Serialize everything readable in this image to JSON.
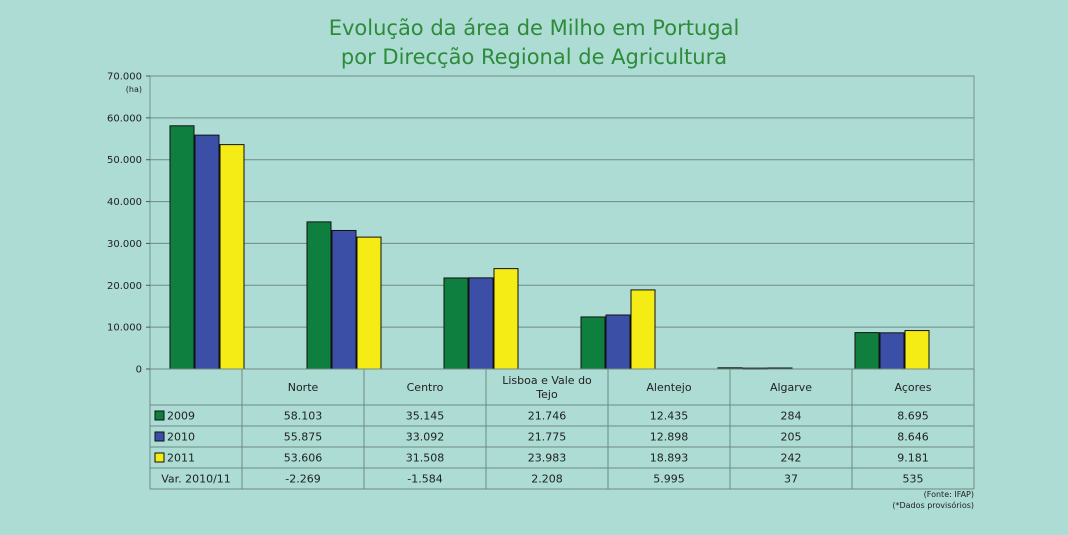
{
  "chart_data": {
    "type": "bar",
    "title_line1": "Evolução da área de Milho em Portugal",
    "title_line2": "por Direcção Regional de Agricultura",
    "unit_label": "(ha)",
    "ylim": [
      0,
      70000
    ],
    "yticks": [
      "0",
      "10.000",
      "20.000",
      "30.000",
      "40.000",
      "50.000",
      "60.000",
      "70.000"
    ],
    "grid": true,
    "categories": [
      "Norte",
      "Centro",
      "Lisboa e Vale do Tejo",
      "Alentejo",
      "Algarve",
      "Açores"
    ],
    "category_lines": [
      [
        "Norte"
      ],
      [
        "Centro"
      ],
      [
        "Lisboa e Vale do",
        "Tejo"
      ],
      [
        "Alentejo"
      ],
      [
        "Algarve"
      ],
      [
        "Açores"
      ]
    ],
    "series": [
      {
        "name": "2009",
        "color": "#0f7f3f",
        "values": [
          58103,
          35145,
          21746,
          12435,
          284,
          8695
        ],
        "labels": [
          "58.103",
          "35.145",
          "21.746",
          "12.435",
          "284",
          "8.695"
        ]
      },
      {
        "name": "2010",
        "color": "#3b4fa6",
        "values": [
          55875,
          33092,
          21775,
          12898,
          205,
          8646
        ],
        "labels": [
          "55.875",
          "33.092",
          "21.775",
          "12.898",
          "205",
          "8.646"
        ]
      },
      {
        "name": "2011",
        "color": "#f4ec14",
        "values": [
          53606,
          31508,
          23983,
          18893,
          242,
          9181
        ],
        "labels": [
          "53.606",
          "31.508",
          "23.983",
          "18.893",
          "242",
          "9.181"
        ]
      }
    ],
    "variation": {
      "name": "Var. 2010/11",
      "labels": [
        "-2.269",
        "-1.584",
        "2.208",
        "5.995",
        "37",
        "535"
      ]
    },
    "source": "(Fonte: IFAP)",
    "footnote": "(*Dados provisórios)"
  }
}
